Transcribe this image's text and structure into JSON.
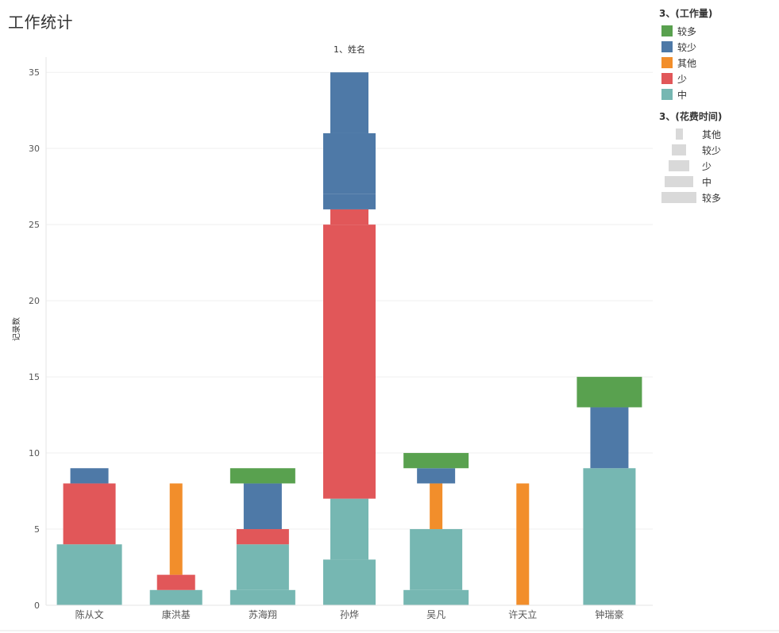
{
  "page": {
    "title": "工作统计"
  },
  "legend": {
    "color_title": "3、(工作量)",
    "color_items": [
      {
        "label": "较多",
        "color": "#59a14f"
      },
      {
        "label": "较少",
        "color": "#4e79a7"
      },
      {
        "label": "其他",
        "color": "#f28e2b"
      },
      {
        "label": "少",
        "color": "#e15759"
      },
      {
        "label": "中",
        "color": "#76b7b2"
      }
    ],
    "size_title": "3、(花费时间)",
    "size_items": [
      {
        "label": "其他"
      },
      {
        "label": "较少"
      },
      {
        "label": "少"
      },
      {
        "label": "中"
      },
      {
        "label": "较多"
      }
    ]
  },
  "chart_data": {
    "type": "bar",
    "title": "1、姓名",
    "ylabel": "记录数",
    "xlabel": "",
    "ylim": [
      0,
      36
    ],
    "yticks": [
      0,
      5,
      10,
      15,
      20,
      25,
      30,
      35
    ],
    "grid": true,
    "legend_placement": "right",
    "categories": [
      "陈从文",
      "康洪基",
      "苏海翔",
      "孙烨",
      "吴凡",
      "许天立",
      "钟瑞豪"
    ],
    "stacked": true,
    "size_dimension": "3、(花费时间)",
    "color_dimension": "3、(工作量)",
    "segments": [
      {
        "category": "陈从文",
        "workload": "中",
        "time": "较多",
        "value": 4
      },
      {
        "category": "陈从文",
        "workload": "少",
        "time": "中",
        "value": 4
      },
      {
        "category": "陈从文",
        "workload": "较少",
        "time": "少",
        "value": 1
      },
      {
        "category": "康洪基",
        "workload": "中",
        "time": "中",
        "value": 1
      },
      {
        "category": "康洪基",
        "workload": "少",
        "time": "少",
        "value": 1
      },
      {
        "category": "康洪基",
        "workload": "其他",
        "time": "其他",
        "value": 6
      },
      {
        "category": "苏海翔",
        "workload": "中",
        "time": "较多",
        "value": 1
      },
      {
        "category": "苏海翔",
        "workload": "中",
        "time": "中",
        "value": 3
      },
      {
        "category": "苏海翔",
        "workload": "少",
        "time": "中",
        "value": 1
      },
      {
        "category": "苏海翔",
        "workload": "较少",
        "time": "少",
        "value": 3
      },
      {
        "category": "苏海翔",
        "workload": "较多",
        "time": "较多",
        "value": 1
      },
      {
        "category": "孙烨",
        "workload": "中",
        "time": "中",
        "value": 3
      },
      {
        "category": "孙烨",
        "workload": "中",
        "time": "少",
        "value": 4
      },
      {
        "category": "孙烨",
        "workload": "少",
        "time": "中",
        "value": 18
      },
      {
        "category": "孙烨",
        "workload": "少",
        "time": "少",
        "value": 1
      },
      {
        "category": "孙烨",
        "workload": "较少",
        "time": "中",
        "value": 1
      },
      {
        "category": "孙烨",
        "workload": "较少",
        "time": "中",
        "value": 4
      },
      {
        "category": "孙烨",
        "workload": "较少",
        "time": "少",
        "value": 4
      },
      {
        "category": "吴凡",
        "workload": "中",
        "time": "较多",
        "value": 1
      },
      {
        "category": "吴凡",
        "workload": "中",
        "time": "中",
        "value": 4
      },
      {
        "category": "吴凡",
        "workload": "其他",
        "time": "其他",
        "value": 3
      },
      {
        "category": "吴凡",
        "workload": "较少",
        "time": "少",
        "value": 1
      },
      {
        "category": "吴凡",
        "workload": "较多",
        "time": "较多",
        "value": 1
      },
      {
        "category": "许天立",
        "workload": "其他",
        "time": "其他",
        "value": 8
      },
      {
        "category": "钟瑞豪",
        "workload": "中",
        "time": "中",
        "value": 9
      },
      {
        "category": "钟瑞豪",
        "workload": "较少",
        "time": "少",
        "value": 4
      },
      {
        "category": "钟瑞豪",
        "workload": "较多",
        "time": "较多",
        "value": 2
      }
    ]
  }
}
